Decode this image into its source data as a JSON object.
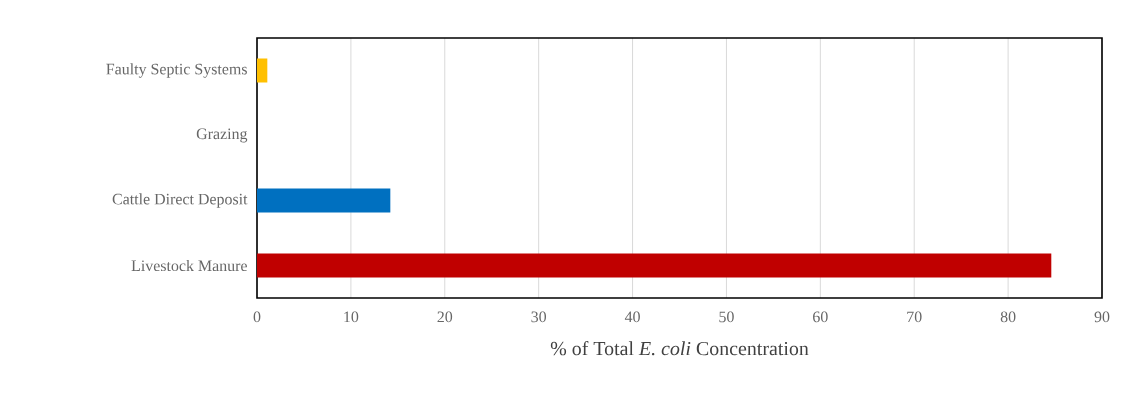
{
  "chart_data": {
    "type": "bar",
    "orientation": "horizontal",
    "categories": [
      "Faulty Septic Systems",
      "Grazing",
      "Cattle Direct Deposit",
      "Livestock Manure"
    ],
    "values": [
      1.1,
      0,
      14.2,
      84.6
    ],
    "colors": [
      "#ffc000",
      "#a5a5a5",
      "#0070c0",
      "#c00000"
    ],
    "xlabel": "% of Total *E. coli* Concentration",
    "xlim": [
      0,
      90
    ],
    "xticks": [
      0,
      10,
      20,
      30,
      40,
      50,
      60,
      70,
      80,
      90
    ],
    "grid": "x"
  }
}
